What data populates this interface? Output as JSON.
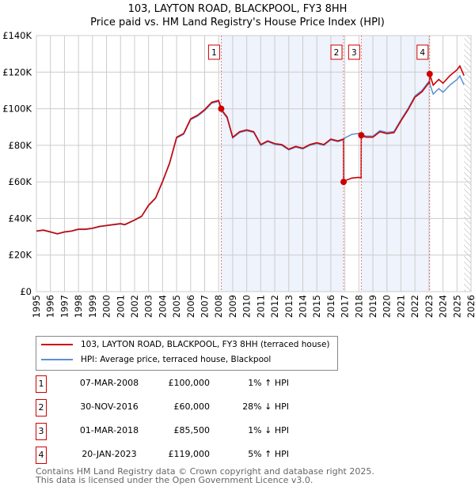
{
  "chart_data": {
    "type": "line",
    "title": "103, LAYTON ROAD, BLACKPOOL, FY3 8HH",
    "subtitle": "Price paid vs. HM Land Registry's House Price Index (HPI)",
    "xlim": [
      1995,
      2026
    ],
    "ylim": [
      0,
      140000
    ],
    "yticks": [
      {
        "v": 0,
        "label": "£0"
      },
      {
        "v": 20000,
        "label": "£20K"
      },
      {
        "v": 40000,
        "label": "£40K"
      },
      {
        "v": 60000,
        "label": "£60K"
      },
      {
        "v": 80000,
        "label": "£80K"
      },
      {
        "v": 100000,
        "label": "£100K"
      },
      {
        "v": 120000,
        "label": "£120K"
      },
      {
        "v": 140000,
        "label": "£140K"
      }
    ],
    "xticks": [
      "1995",
      "1996",
      "1997",
      "1998",
      "1999",
      "2000",
      "2001",
      "2002",
      "2003",
      "2004",
      "2005",
      "2006",
      "2007",
      "2008",
      "2009",
      "2010",
      "2011",
      "2012",
      "2013",
      "2014",
      "2015",
      "2016",
      "2017",
      "2018",
      "2019",
      "2020",
      "2021",
      "2022",
      "2023",
      "2024",
      "2025",
      "2026"
    ],
    "grid": true,
    "forecast_start": 2025.5,
    "colors": {
      "property": "#cc0000",
      "hpi": "#5b8fd4",
      "band": "#eef3fc"
    },
    "hpi_series": {
      "x": [
        1995,
        1995.5,
        1996,
        1996.5,
        1997,
        1997.5,
        1998,
        1998.5,
        1999,
        1999.5,
        2000,
        2000.5,
        2001,
        2001.3,
        2002,
        2002.5,
        2003,
        2003.5,
        2004,
        2004.5,
        2005,
        2005.5,
        2006,
        2006.5,
        2007,
        2007.5,
        2008,
        2008.2,
        2008.6,
        2009,
        2009.5,
        2010,
        2010.5,
        2011,
        2011.5,
        2012,
        2012.5,
        2013,
        2013.5,
        2014,
        2014.5,
        2015,
        2015.5,
        2016,
        2016.5,
        2016.9,
        2017,
        2017.5,
        2018,
        2018.2,
        2018.5,
        2019,
        2019.5,
        2020,
        2020.5,
        2021,
        2021.5,
        2022,
        2022.5,
        2023,
        2023.3,
        2023.7,
        2024,
        2024.5,
        2025,
        2025.2,
        2025.5
      ],
      "y": [
        33000,
        33500,
        32500,
        31500,
        32500,
        33000,
        34000,
        34000,
        34500,
        35500,
        36000,
        36500,
        37000,
        36500,
        39000,
        41000,
        47000,
        51000,
        60000,
        70000,
        84000,
        86000,
        94000,
        96000,
        99000,
        103000,
        104000,
        99000,
        95000,
        84000,
        87000,
        88000,
        87000,
        80000,
        82000,
        80500,
        80000,
        77500,
        79000,
        78000,
        80000,
        81000,
        80000,
        83000,
        82000,
        83000,
        84000,
        86000,
        86500,
        86000,
        85000,
        85000,
        88000,
        87000,
        87500,
        94000,
        100000,
        107000,
        110000,
        115000,
        108000,
        111000,
        109000,
        113000,
        116000,
        118000,
        113000
      ]
    },
    "legend": [
      {
        "label": "103, LAYTON ROAD, BLACKPOOL, FY3 8HH (terraced house)"
      },
      {
        "label": "HPI: Average price, terraced house, Blackpool"
      }
    ],
    "sales": [
      {
        "id": "1",
        "x": 2008.18,
        "date": "07-MAR-2008",
        "price": 100000,
        "price_label": "£100,000",
        "hpi": "1% ↑ HPI"
      },
      {
        "id": "2",
        "x": 2016.91,
        "date": "30-NOV-2016",
        "price": 60000,
        "price_label": "£60,000",
        "hpi": "28% ↓ HPI"
      },
      {
        "id": "3",
        "x": 2018.17,
        "date": "01-MAR-2018",
        "price": 85500,
        "price_label": "£85,500",
        "hpi": "1% ↓ HPI"
      },
      {
        "id": "4",
        "x": 2023.05,
        "date": "20-JAN-2023",
        "price": 119000,
        "price_label": "£119,000",
        "hpi": "5% ↑ HPI"
      }
    ]
  },
  "footer": {
    "line1": "Contains HM Land Registry data © Crown copyright and database right 2025.",
    "line2": "This data is licensed under the Open Government Licence v3.0."
  }
}
